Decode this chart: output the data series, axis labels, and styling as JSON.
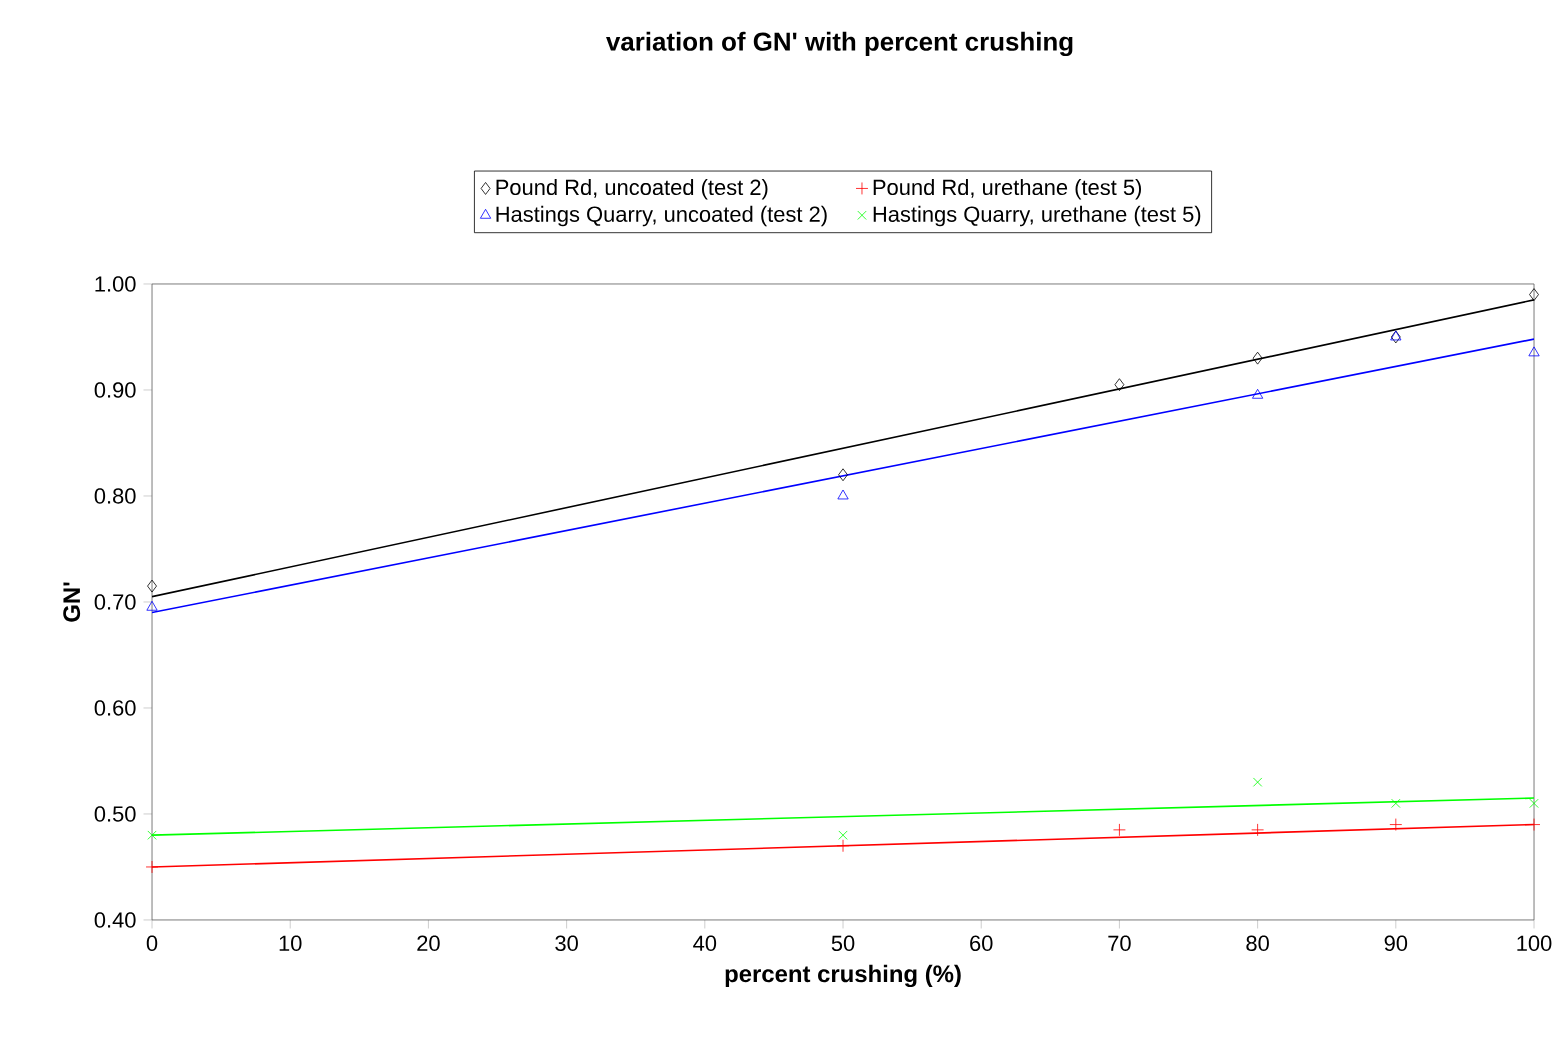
{
  "chart_data": {
    "type": "scatter",
    "title": "variation of GN' with percent crushing",
    "xlabel": "percent crushing (%)",
    "ylabel": "GN'",
    "xlim": [
      0,
      100
    ],
    "xticks": [
      0,
      10,
      20,
      30,
      40,
      50,
      60,
      70,
      80,
      90,
      100
    ],
    "ylim": [
      0.4,
      1.0
    ],
    "yticks": [
      {
        "value": 0.4,
        "label": "0.40"
      },
      {
        "value": 0.5,
        "label": "0.50"
      },
      {
        "value": 0.6,
        "label": "0.60"
      },
      {
        "value": 0.7,
        "label": "0.70"
      },
      {
        "value": 0.8,
        "label": "0.80"
      },
      {
        "value": 0.9,
        "label": "0.90"
      },
      {
        "value": 1.0,
        "label": "1.00"
      }
    ],
    "grid": false,
    "legend": "top",
    "series": [
      {
        "name": "Pound Rd, uncoated (test 2)",
        "color": "#000000",
        "marker": "diamond",
        "x": [
          0,
          50,
          70,
          80,
          90,
          100
        ],
        "values": [
          0.715,
          0.82,
          0.905,
          0.93,
          0.95,
          0.99
        ]
      },
      {
        "name": "Pound Rd, urethane (test 5)",
        "color": "#ff0000",
        "marker": "cross",
        "x": [
          0,
          50,
          70,
          80,
          90,
          100
        ],
        "values": [
          0.45,
          0.47,
          0.485,
          0.485,
          0.49,
          0.49
        ]
      },
      {
        "name": "Hastings Quarry, uncoated (test 2)",
        "color": "#0000ff",
        "marker": "triangle",
        "x": [
          0,
          50,
          80,
          90,
          100
        ],
        "values": [
          0.695,
          0.8,
          0.895,
          0.95,
          0.935
        ]
      },
      {
        "name": "Hastings Quarry, urethane (test 5)",
        "color": "#00ff00",
        "marker": "x",
        "x": [
          0,
          50,
          80,
          90,
          100
        ],
        "values": [
          0.48,
          0.48,
          0.53,
          0.51,
          0.51
        ]
      },
      {
        "type": "line",
        "color": "#000000",
        "x": [
          0,
          100
        ],
        "values": [
          0.705,
          0.985
        ]
      },
      {
        "type": "line",
        "color": "#ff0000",
        "x": [
          0,
          100
        ],
        "values": [
          0.45,
          0.49
        ]
      },
      {
        "type": "line",
        "color": "#0000ff",
        "x": [
          0,
          100
        ],
        "values": [
          0.69,
          0.948
        ]
      },
      {
        "type": "line",
        "color": "#00ff00",
        "x": [
          0,
          100
        ],
        "values": [
          0.48,
          0.515
        ]
      }
    ]
  }
}
